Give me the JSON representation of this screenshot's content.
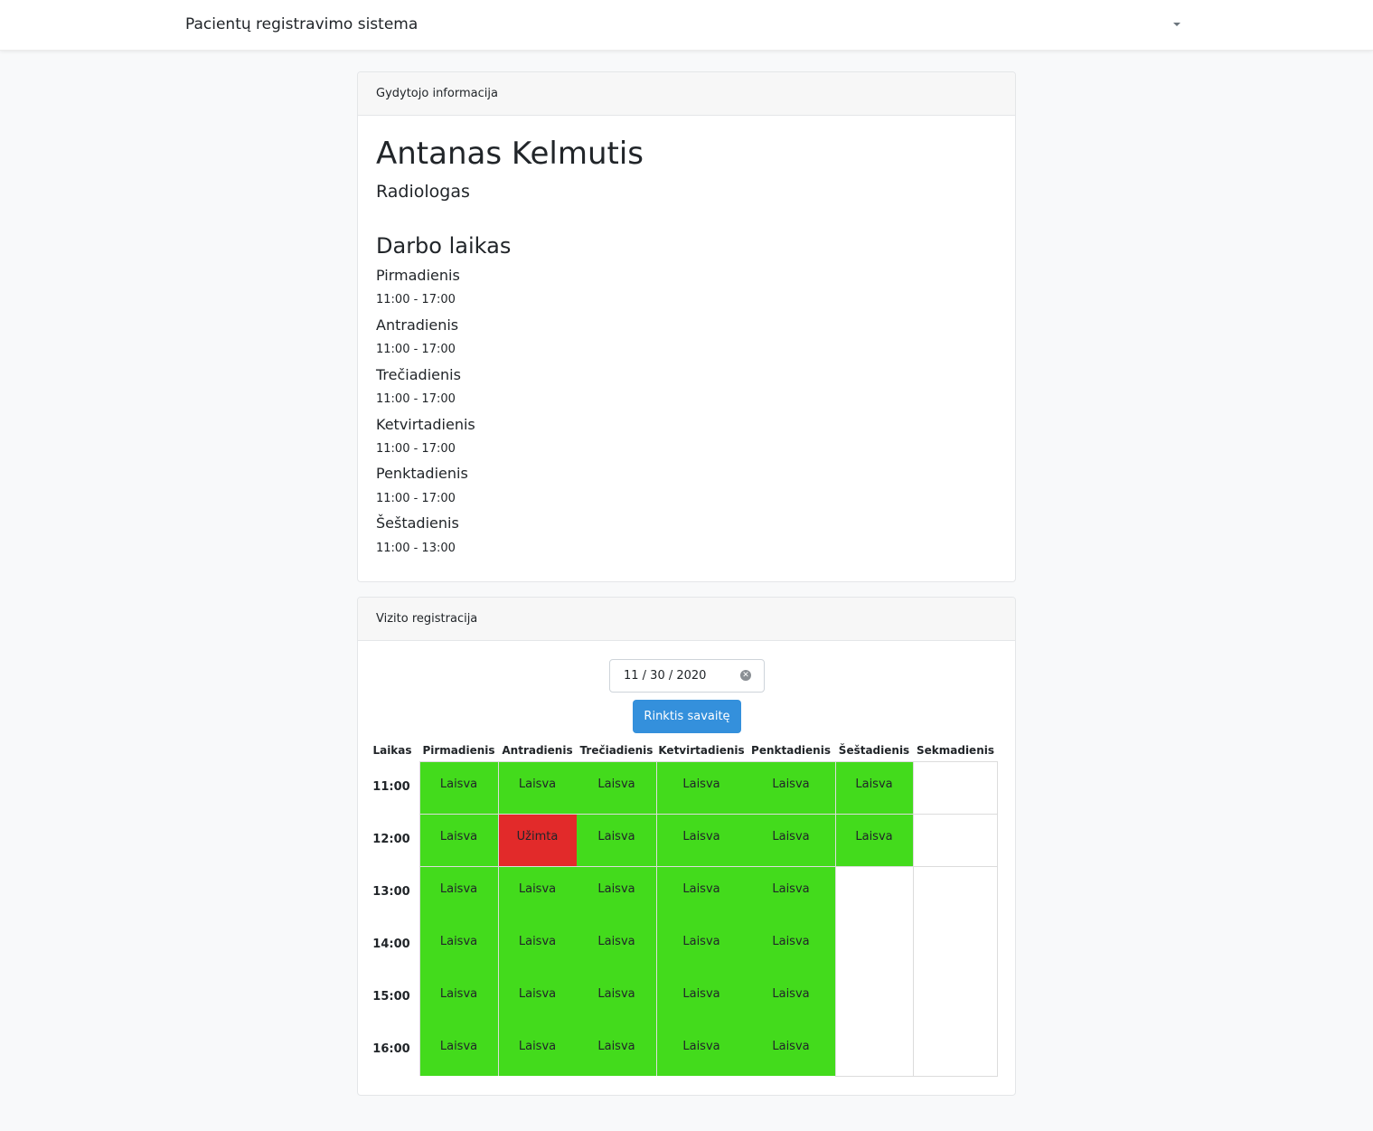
{
  "navbar": {
    "brand": "Pacientų registravimo sistema"
  },
  "info_card": {
    "header": "Gydytojo informacija",
    "doctor_name": "Antanas Kelmutis",
    "specialty": "Radiologas",
    "work_hours_title": "Darbo laikas",
    "work_hours": [
      {
        "day": "Pirmadienis",
        "time": "11:00 - 17:00"
      },
      {
        "day": "Antradienis",
        "time": "11:00 - 17:00"
      },
      {
        "day": "Trečiadienis",
        "time": "11:00 - 17:00"
      },
      {
        "day": "Ketvirtadienis",
        "time": "11:00 - 17:00"
      },
      {
        "day": "Penktadienis",
        "time": "11:00 - 17:00"
      },
      {
        "day": "Šeštadienis",
        "time": "11:00 - 13:00"
      }
    ]
  },
  "visit_card": {
    "header": "Vizito registracija",
    "date_value": "11 / 30 / 2020",
    "choose_week_button": "Rinktis savaitę",
    "table": {
      "columns": [
        "Laikas",
        "Pirmadienis",
        "Antradienis",
        "Trečiadienis",
        "Ketvirtadienis",
        "Penktadienis",
        "Šeštadienis",
        "Sekmadienis"
      ],
      "rows": [
        {
          "time": "11:00",
          "slots": [
            "Laisva",
            "Laisva",
            "Laisva",
            "Laisva",
            "Laisva",
            "Laisva",
            ""
          ]
        },
        {
          "time": "12:00",
          "slots": [
            "Laisva",
            "Užimta",
            "Laisva",
            "Laisva",
            "Laisva",
            "Laisva",
            ""
          ]
        },
        {
          "time": "13:00",
          "slots": [
            "Laisva",
            "Laisva",
            "Laisva",
            "Laisva",
            "Laisva",
            "",
            ""
          ]
        },
        {
          "time": "14:00",
          "slots": [
            "Laisva",
            "Laisva",
            "Laisva",
            "Laisva",
            "Laisva",
            "",
            ""
          ]
        },
        {
          "time": "15:00",
          "slots": [
            "Laisva",
            "Laisva",
            "Laisva",
            "Laisva",
            "Laisva",
            "",
            ""
          ]
        },
        {
          "time": "16:00",
          "slots": [
            "Laisva",
            "Laisva",
            "Laisva",
            "Laisva",
            "Laisva",
            "",
            ""
          ]
        }
      ]
    }
  },
  "colors": {
    "free": "#43db1c",
    "busy": "#e22a2a",
    "primary": "#3490dc"
  }
}
